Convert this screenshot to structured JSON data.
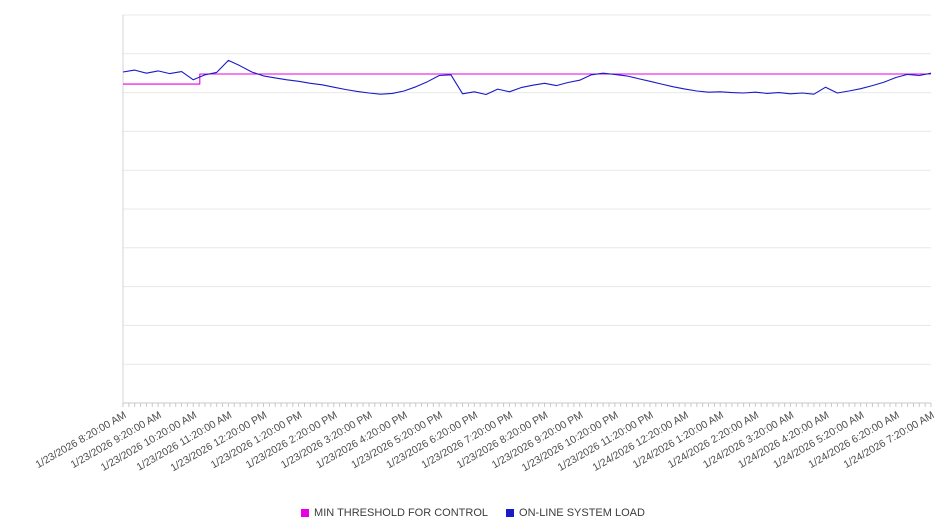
{
  "chart_data": {
    "type": "line",
    "title": "",
    "xlabel": "",
    "ylabel": "",
    "x_labels": [
      "1/23/2026 8:20:00 AM",
      "1/23/2026 9:20:00 AM",
      "1/23/2026 10:20:00 AM",
      "1/23/2026 11:20:00 AM",
      "1/23/2026 12:20:00 PM",
      "1/23/2026 1:20:00 PM",
      "1/23/2026 2:20:00 PM",
      "1/23/2026 3:20:00 PM",
      "1/23/2026 4:20:00 PM",
      "1/23/2026 5:20:00 PM",
      "1/23/2026 6:20:00 PM",
      "1/23/2026 7:20:00 PM",
      "1/23/2026 8:20:00 PM",
      "1/23/2026 9:20:00 PM",
      "1/23/2026 10:20:00 PM",
      "1/23/2026 11:20:00 PM",
      "1/24/2026 12:20:00 AM",
      "1/24/2026 1:20:00 AM",
      "1/24/2026 2:20:00 AM",
      "1/24/2026 3:20:00 AM",
      "1/24/2026 4:20:00 AM",
      "1/24/2026 5:20:00 AM",
      "1/24/2026 6:20:00 AM",
      "1/24/2026 7:20:00 AM"
    ],
    "x_label_rotation_deg": -30,
    "minor_ticks_per_hour": 6,
    "ylim": [
      0,
      100
    ],
    "y_gridline_count": 11,
    "y_tick_labels_visible": false,
    "grid": "horizontal",
    "legend_position": "bottom",
    "series": [
      {
        "name": "MIN THRESHOLD FOR CONTROL",
        "color": "#e500e5",
        "x_fractions": [
          0,
          0.095,
          0.095,
          1
        ],
        "values": [
          82.2,
          82.2,
          84.8,
          84.8
        ]
      },
      {
        "name": "ON-LINE SYSTEM LOAD",
        "color": "#1a1ac6",
        "values": [
          85.3,
          85.8,
          85.0,
          85.6,
          84.9,
          85.4,
          83.3,
          84.6,
          85.2,
          88.3,
          86.9,
          85.3,
          84.3,
          83.8,
          83.3,
          82.9,
          82.4,
          82.0,
          81.4,
          80.8,
          80.3,
          79.9,
          79.6,
          79.8,
          80.4,
          81.5,
          82.8,
          84.4,
          84.6,
          79.7,
          80.2,
          79.5,
          80.9,
          80.2,
          81.3,
          81.9,
          82.4,
          81.8,
          82.6,
          83.2,
          84.6,
          85.0,
          84.7,
          84.3,
          83.6,
          82.9,
          82.2,
          81.5,
          80.9,
          80.4,
          80.1,
          80.2,
          80.0,
          79.9,
          80.1,
          79.8,
          80.0,
          79.7,
          79.9,
          79.6,
          81.4,
          79.9,
          80.4,
          81.0,
          81.8,
          82.7,
          83.9,
          84.7,
          84.4,
          85.0
        ]
      }
    ]
  }
}
